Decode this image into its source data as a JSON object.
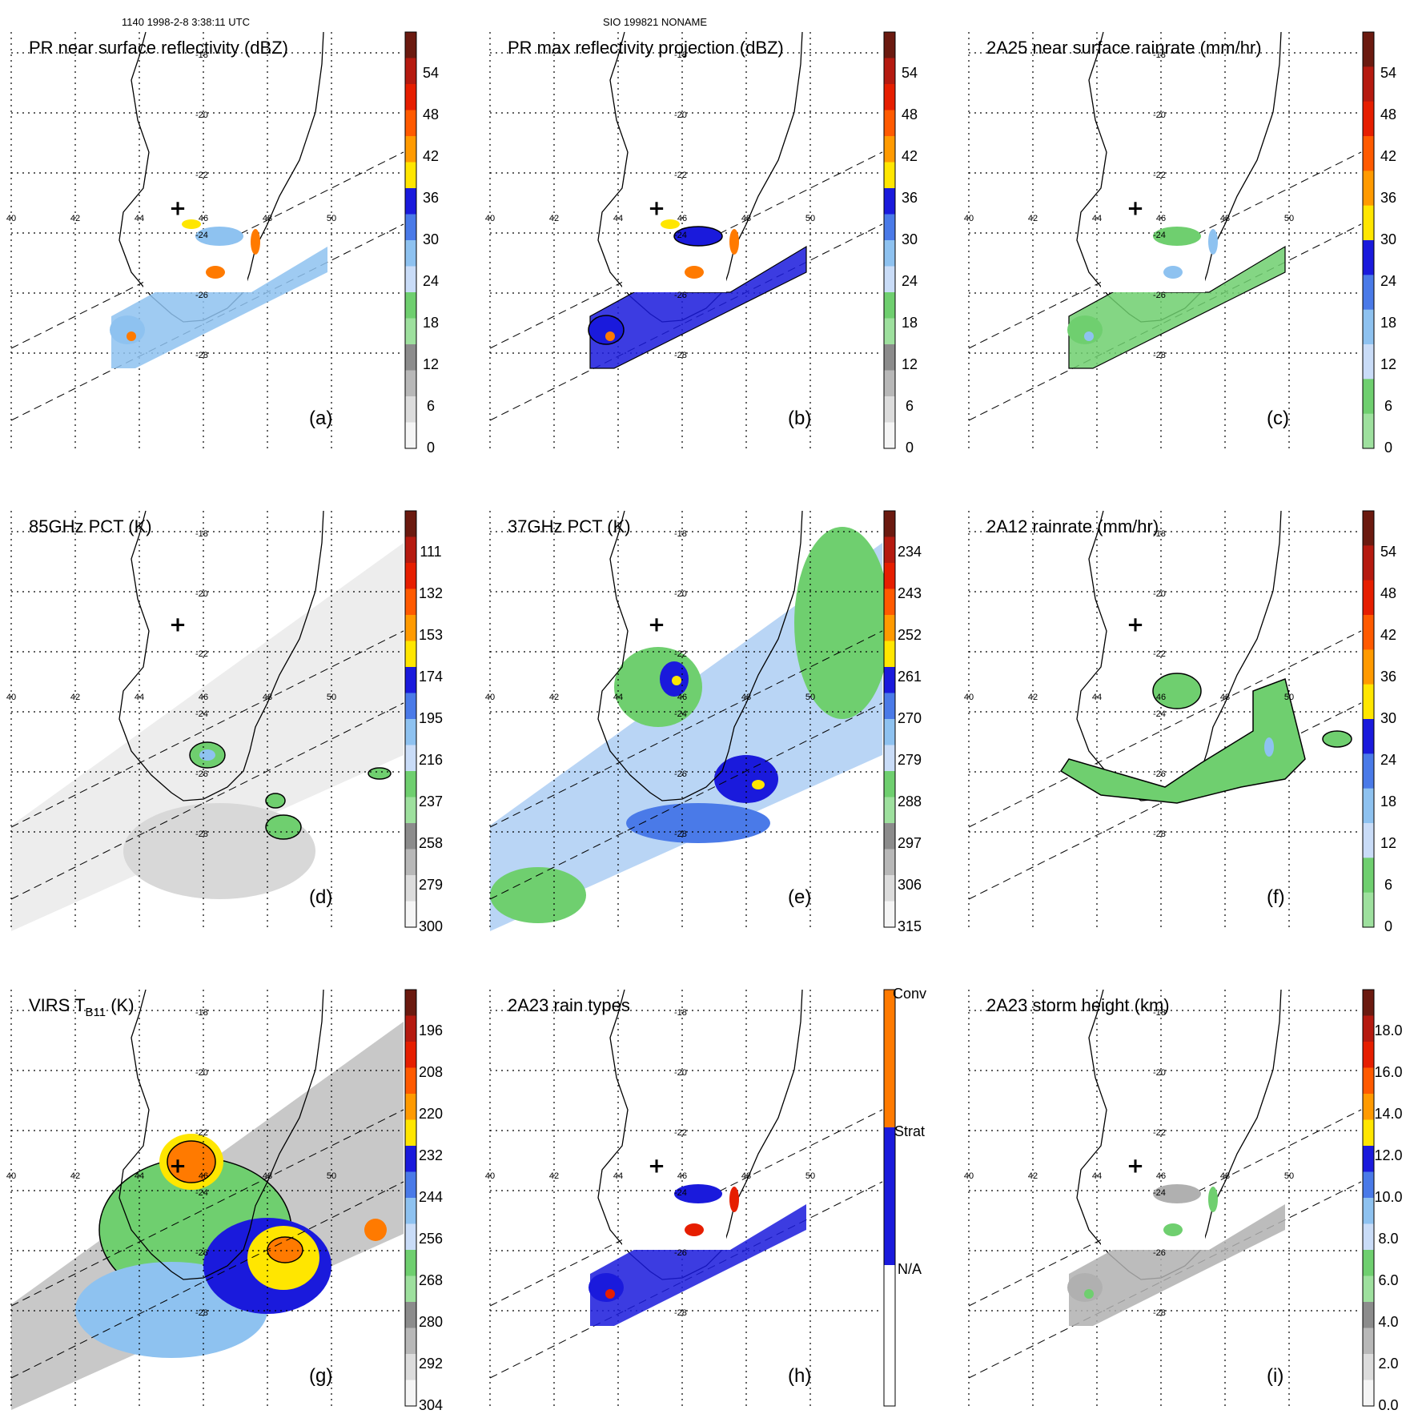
{
  "header": {
    "left": "1140 1998-2-8 3:38:11 UTC",
    "center": "SIO 199821 NONAME"
  },
  "map": {
    "lat_labels": [
      "-18",
      "-20",
      "-22",
      "-24",
      "-26",
      "-28"
    ],
    "lon_labels": [
      "40",
      "42",
      "44",
      "46",
      "48",
      "50"
    ],
    "storm_center_marker": "+"
  },
  "colors": {
    "green": "#6fcf6f",
    "lightblue": "#8ec2f0",
    "blue": "#1a1adc",
    "yellow": "#ffe600",
    "orange": "#ff7a00",
    "red": "#e61e00",
    "darkred": "#6b1a10"
  },
  "panels": [
    {
      "id": "a",
      "title": "PR near surface reflectivity (dBZ)",
      "label": "(a)",
      "colorbar": {
        "ticks": [
          "54",
          "48",
          "42",
          "36",
          "30",
          "24",
          "18",
          "12",
          "6",
          "0"
        ],
        "scheme": "dbz"
      }
    },
    {
      "id": "b",
      "title": "PR max reflectivity projection (dBZ)",
      "label": "(b)",
      "colorbar": {
        "ticks": [
          "54",
          "48",
          "42",
          "36",
          "30",
          "24",
          "18",
          "12",
          "6",
          "0"
        ],
        "scheme": "dbz"
      }
    },
    {
      "id": "c",
      "title": "2A25 near surface rainrate (mm/hr)",
      "label": "(c)",
      "colorbar": {
        "ticks": [
          "54",
          "48",
          "42",
          "36",
          "30",
          "24",
          "18",
          "12",
          "6",
          "0"
        ],
        "scheme": "rain"
      }
    },
    {
      "id": "d",
      "title": "85GHz PCT (K)",
      "label": "(d)",
      "colorbar": {
        "ticks": [
          "111",
          "132",
          "153",
          "174",
          "195",
          "216",
          "237",
          "258",
          "279",
          "300"
        ],
        "scheme": "dbz"
      }
    },
    {
      "id": "e",
      "title": "37GHz PCT (K)",
      "label": "(e)",
      "colorbar": {
        "ticks": [
          "234",
          "243",
          "252",
          "261",
          "270",
          "279",
          "288",
          "297",
          "306",
          "315"
        ],
        "scheme": "dbz"
      }
    },
    {
      "id": "f",
      "title": "2A12 rainrate (mm/hr)",
      "label": "(f)",
      "colorbar": {
        "ticks": [
          "54",
          "48",
          "42",
          "36",
          "30",
          "24",
          "18",
          "12",
          "6",
          "0"
        ],
        "scheme": "rain"
      }
    },
    {
      "id": "g",
      "title_main": "VIRS T",
      "title_sub": "B11",
      "title_tail": " (K)",
      "label": "(g)",
      "colorbar": {
        "ticks": [
          "196",
          "208",
          "220",
          "232",
          "244",
          "256",
          "268",
          "280",
          "292",
          "304"
        ],
        "scheme": "dbz"
      }
    },
    {
      "id": "h",
      "title": "2A23 rain types",
      "label": "(h)",
      "colorbar": {
        "ticks": [
          "Conv",
          "Strat",
          "N/A"
        ],
        "scheme": "types"
      }
    },
    {
      "id": "i",
      "title": "2A23 storm height (km)",
      "label": "(i)",
      "colorbar": {
        "ticks": [
          "18.0",
          "16.0",
          "14.0",
          "12.0",
          "10.0",
          "8.0",
          "6.0",
          "4.0",
          "2.0",
          "0.0"
        ],
        "scheme": "dbz"
      }
    }
  ]
}
